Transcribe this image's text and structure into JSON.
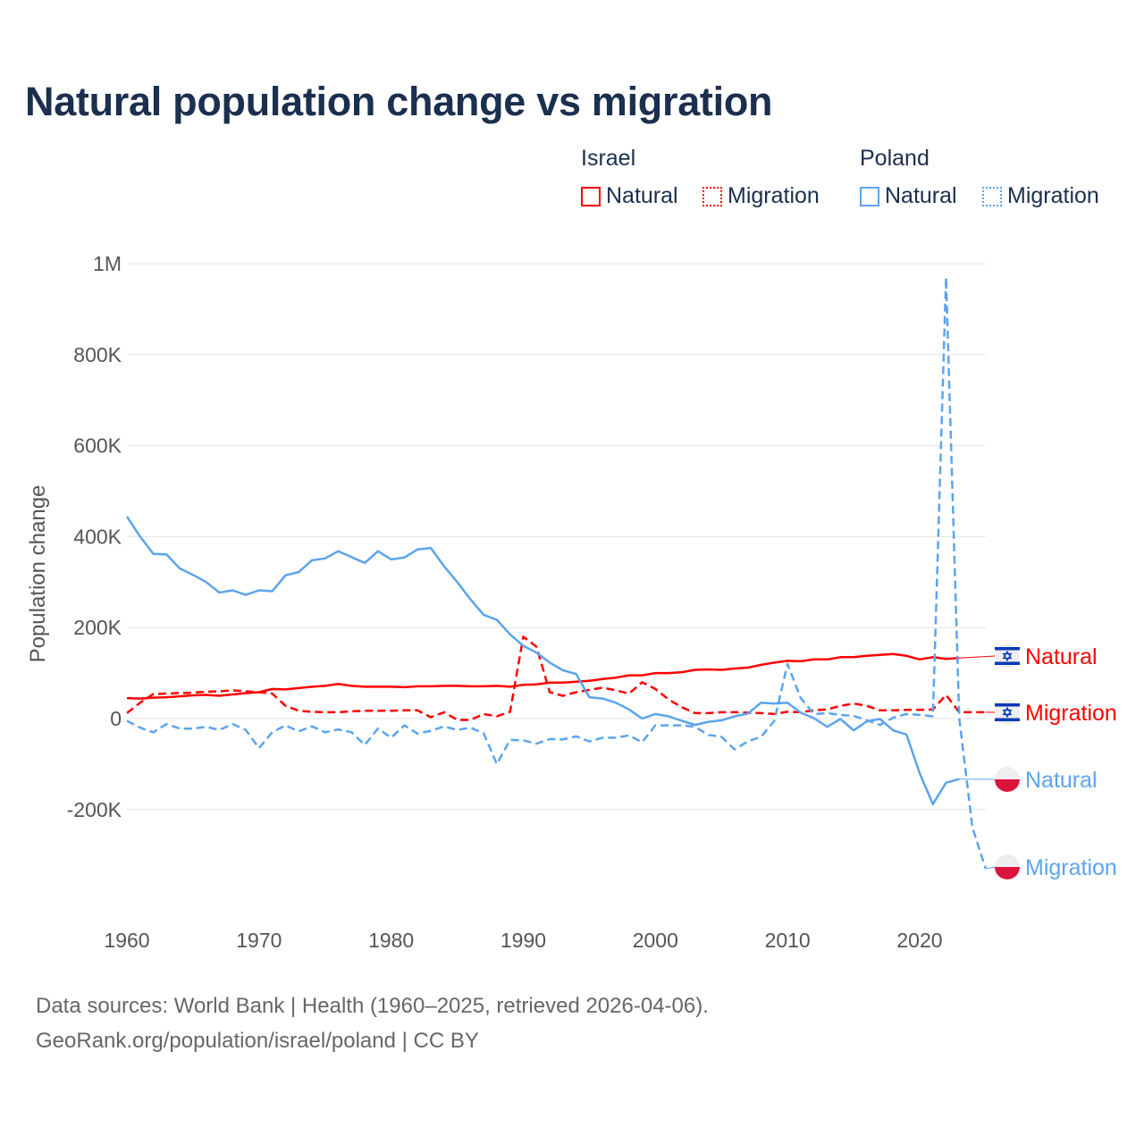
{
  "chart_data": {
    "type": "line",
    "title": "Natural population change vs migration",
    "xlabel": "",
    "ylabel": "Population change",
    "xlim": [
      1960,
      2025
    ],
    "ylim": [
      -400000,
      1000000
    ],
    "x_ticks": [
      "1960",
      "1970",
      "1980",
      "1990",
      "2000",
      "2010",
      "2020"
    ],
    "x_tick_values": [
      1960,
      1970,
      1980,
      1990,
      2000,
      2010,
      2020
    ],
    "y_ticks": [
      "1M",
      "800K",
      "600K",
      "400K",
      "200K",
      "0",
      "-200K"
    ],
    "y_tick_values": [
      1000000,
      800000,
      600000,
      400000,
      200000,
      0,
      -200000
    ],
    "grid": true,
    "legend": {
      "placement": "top-right",
      "groups": [
        {
          "name": "Israel",
          "items": [
            "Natural",
            "Migration"
          ]
        },
        {
          "name": "Poland",
          "items": [
            "Natural",
            "Migration"
          ]
        }
      ]
    },
    "x": [
      1960,
      1961,
      1962,
      1963,
      1964,
      1965,
      1966,
      1967,
      1968,
      1969,
      1970,
      1971,
      1972,
      1973,
      1974,
      1975,
      1976,
      1977,
      1978,
      1979,
      1980,
      1981,
      1982,
      1983,
      1984,
      1985,
      1986,
      1987,
      1988,
      1989,
      1990,
      1991,
      1992,
      1993,
      1994,
      1995,
      1996,
      1997,
      1998,
      1999,
      2000,
      2001,
      2002,
      2003,
      2004,
      2005,
      2006,
      2007,
      2008,
      2009,
      2010,
      2011,
      2012,
      2013,
      2014,
      2015,
      2016,
      2017,
      2018,
      2019,
      2020,
      2021,
      2022,
      2023,
      2024,
      2025
    ],
    "series": [
      {
        "name": "Israel Natural",
        "country": "Israel",
        "kind": "Natural",
        "color": "#ff0000",
        "dash": false,
        "end_label": "Natural",
        "values_k": [
          45,
          44,
          46,
          47,
          49,
          51,
          52,
          50,
          53,
          56,
          58,
          65,
          64,
          67,
          70,
          72,
          76,
          72,
          70,
          70,
          70,
          69,
          71,
          71,
          72,
          72,
          71,
          71,
          72,
          70,
          74,
          75,
          79,
          79,
          81,
          83,
          87,
          90,
          95,
          95,
          100,
          100,
          102,
          107,
          108,
          107,
          110,
          112,
          118,
          123,
          127,
          126,
          130,
          130,
          135,
          135,
          138,
          140,
          142,
          138,
          130,
          135,
          131,
          133,
          null,
          null
        ]
      },
      {
        "name": "Israel Migration",
        "country": "Israel",
        "kind": "Migration",
        "color": "#ff0000",
        "dash": true,
        "end_label": "Migration",
        "values_k": [
          12,
          35,
          54,
          55,
          56,
          57,
          59,
          60,
          62,
          60,
          58,
          55,
          28,
          17,
          15,
          14,
          14,
          16,
          17,
          17,
          17,
          18,
          18,
          3,
          14,
          -3,
          -3,
          10,
          5,
          15,
          180,
          158,
          58,
          50,
          58,
          63,
          68,
          62,
          55,
          80,
          65,
          42,
          25,
          12,
          12,
          14,
          14,
          13,
          12,
          10,
          15,
          14,
          18,
          20,
          28,
          33,
          28,
          18,
          18,
          19,
          19,
          20,
          52,
          14,
          14,
          14
        ]
      },
      {
        "name": "Poland Natural",
        "country": "Poland",
        "kind": "Natural",
        "color": "#5ba4ee",
        "dash": false,
        "end_label": "Natural",
        "values_k": [
          444,
          400,
          362,
          361,
          330,
          316,
          300,
          277,
          282,
          272,
          282,
          280,
          315,
          322,
          348,
          352,
          368,
          355,
          342,
          368,
          350,
          354,
          372,
          375,
          335,
          300,
          262,
          228,
          217,
          185,
          160,
          145,
          123,
          106,
          98,
          47,
          44,
          35,
          20,
          0,
          10,
          5,
          -5,
          -14,
          -7,
          -4,
          5,
          11,
          35,
          33,
          35,
          13,
          1,
          -18,
          -1,
          -26,
          -6,
          -1,
          -26,
          -35,
          -120,
          -188,
          -141,
          -133,
          null,
          null
        ]
      },
      {
        "name": "Poland Migration",
        "country": "Poland",
        "kind": "Migration",
        "color": "#5ba4ee",
        "dash": true,
        "end_label": "Migration",
        "values_k": [
          -5,
          -20,
          -30,
          -12,
          -22,
          -22,
          -18,
          -25,
          -12,
          -25,
          -65,
          -30,
          -15,
          -28,
          -17,
          -30,
          -24,
          -30,
          -58,
          -22,
          -42,
          -15,
          -33,
          -27,
          -17,
          -25,
          -20,
          -32,
          -100,
          -47,
          -48,
          -55,
          -45,
          -46,
          -39,
          -50,
          -42,
          -42,
          -37,
          -52,
          -15,
          -15,
          -15,
          -18,
          -36,
          -40,
          -68,
          -50,
          -40,
          -5,
          120,
          45,
          10,
          12,
          8,
          6,
          -4,
          -14,
          2,
          10,
          8,
          5,
          970,
          0,
          -240,
          -330
        ]
      }
    ]
  },
  "footer": {
    "line1": "Data sources: World Bank | Health (1960–2025, retrieved 2026-04-06).",
    "line2": "GeoRank.org/population/israel/poland | CC BY"
  },
  "colors": {
    "israel": "#ff0000",
    "poland": "#5ba4ee",
    "title": "#1b2f4e"
  }
}
